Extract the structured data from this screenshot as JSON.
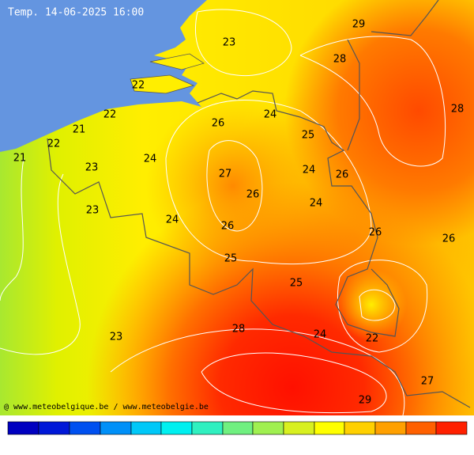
{
  "title": "Temp. 14-06-2025 16:00",
  "credit": "@ www.meteobelgique.be / www.meteobelgie.be",
  "contour_labels": [
    29,
    23,
    28,
    22,
    28,
    22,
    26,
    24,
    21,
    25,
    22,
    21,
    24,
    23,
    27,
    24,
    26,
    26,
    24,
    23,
    24,
    26,
    26,
    26,
    25,
    25,
    28,
    24,
    23,
    22,
    27,
    29
  ]
}
